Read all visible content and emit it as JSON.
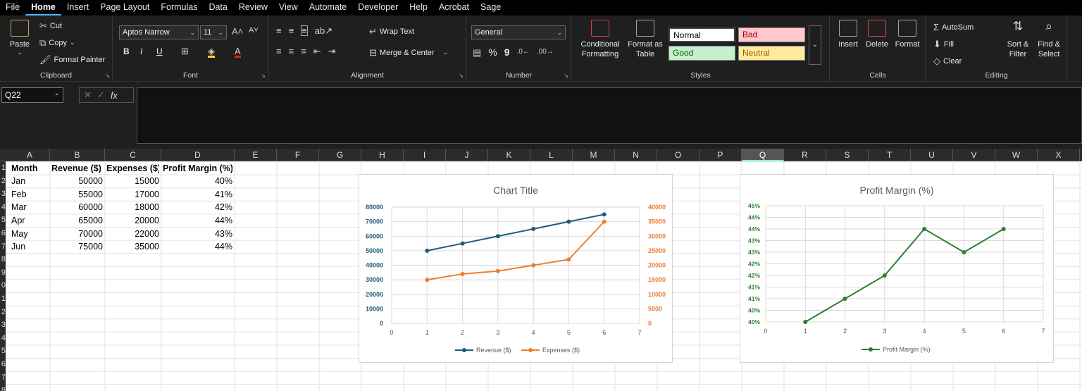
{
  "menu": [
    "File",
    "Home",
    "Insert",
    "Page Layout",
    "Formulas",
    "Data",
    "Review",
    "View",
    "Automate",
    "Developer",
    "Help",
    "Acrobat",
    "Sage"
  ],
  "ribbon": {
    "clipboard": {
      "paste": "Paste",
      "cut": "Cut",
      "copy": "Copy",
      "format_painter": "Format Painter",
      "label": "Clipboard"
    },
    "font": {
      "name": "Aptos Narrow",
      "size": "11",
      "label": "Font",
      "bold": "B",
      "italic": "I",
      "underline": "U"
    },
    "alignment": {
      "wrap": "Wrap Text",
      "merge": "Merge & Center",
      "label": "Alignment"
    },
    "number": {
      "format": "General",
      "percent": "%",
      "comma": "9",
      "label": "Number"
    },
    "styles_grp": {
      "conditional": "Conditional Formatting",
      "format_table": "Format as Table",
      "normal": "Normal",
      "bad": "Bad",
      "good": "Good",
      "neutral": "Neutral",
      "label": "Styles"
    },
    "cells": {
      "insert": "Insert",
      "delete": "Delete",
      "format": "Format",
      "label": "Cells"
    },
    "editing": {
      "autosum": "AutoSum",
      "fill": "Fill",
      "clear": "Clear",
      "sort": "Sort & Filter",
      "find": "Find & Select",
      "label": "Editing"
    }
  },
  "formula_bar": {
    "cell_ref": "Q22",
    "value": ""
  },
  "columns": [
    "A",
    "B",
    "C",
    "D",
    "E",
    "F",
    "G",
    "H",
    "I",
    "J",
    "K",
    "L",
    "M",
    "N",
    "O",
    "P",
    "Q",
    "R",
    "S",
    "T",
    "U",
    "V",
    "W",
    "X"
  ],
  "rows": [
    "1",
    "2",
    "3",
    "4",
    "5",
    "6",
    "7",
    "8",
    "9",
    "0",
    "1",
    "2",
    "3",
    "4",
    "5",
    "6",
    "7",
    "8"
  ],
  "table": {
    "headers": [
      "Month",
      "Revenue ($)",
      "Expenses ($)",
      "Profit Margin (%)"
    ],
    "rows": [
      [
        "Jan",
        "50000",
        "15000",
        "40%"
      ],
      [
        "Feb",
        "55000",
        "17000",
        "41%"
      ],
      [
        "Mar",
        "60000",
        "18000",
        "42%"
      ],
      [
        "Apr",
        "65000",
        "20000",
        "44%"
      ],
      [
        "May",
        "70000",
        "22000",
        "43%"
      ],
      [
        "Jun",
        "75000",
        "35000",
        "44%"
      ]
    ]
  },
  "chart_data": [
    {
      "type": "line",
      "title": "Chart Title",
      "x": [
        1,
        2,
        3,
        4,
        5,
        6
      ],
      "xlim": [
        0,
        7
      ],
      "series": [
        {
          "name": "Revenue ($)",
          "values": [
            50000,
            55000,
            60000,
            65000,
            70000,
            75000
          ],
          "axis": "left",
          "color": "#1f5c7a"
        },
        {
          "name": "Expenses ($)",
          "values": [
            15000,
            17000,
            18000,
            20000,
            22000,
            35000
          ],
          "axis": "right",
          "color": "#ed7d31"
        }
      ],
      "ylim_left": [
        0,
        80000
      ],
      "ylim_right": [
        0,
        40000
      ],
      "left_ticks": [
        "0",
        "10000",
        "20000",
        "30000",
        "40000",
        "50000",
        "60000",
        "70000",
        "80000"
      ],
      "right_ticks": [
        "0",
        "5000",
        "10000",
        "15000",
        "20000",
        "25000",
        "30000",
        "35000",
        "40000"
      ],
      "x_ticks": [
        "0",
        "1",
        "2",
        "3",
        "4",
        "5",
        "6",
        "7"
      ],
      "legend": "bottom",
      "grid": true
    },
    {
      "type": "line",
      "title": "Profit Margin (%)",
      "x": [
        1,
        2,
        3,
        4,
        5,
        6
      ],
      "xlim": [
        0,
        7
      ],
      "series": [
        {
          "name": "Profit Margin (%)",
          "values": [
            0.4,
            0.41,
            0.42,
            0.44,
            0.43,
            0.44
          ],
          "color": "#2e7d32"
        }
      ],
      "ylim": [
        0.4,
        0.45
      ],
      "y_ticks": [
        "40%",
        "40%",
        "41%",
        "41%",
        "42%",
        "42%",
        "43%",
        "43%",
        "44%",
        "44%",
        "45%"
      ],
      "x_ticks": [
        "0",
        "1",
        "2",
        "3",
        "4",
        "5",
        "6",
        "7"
      ],
      "legend": "bottom",
      "grid": true
    }
  ]
}
